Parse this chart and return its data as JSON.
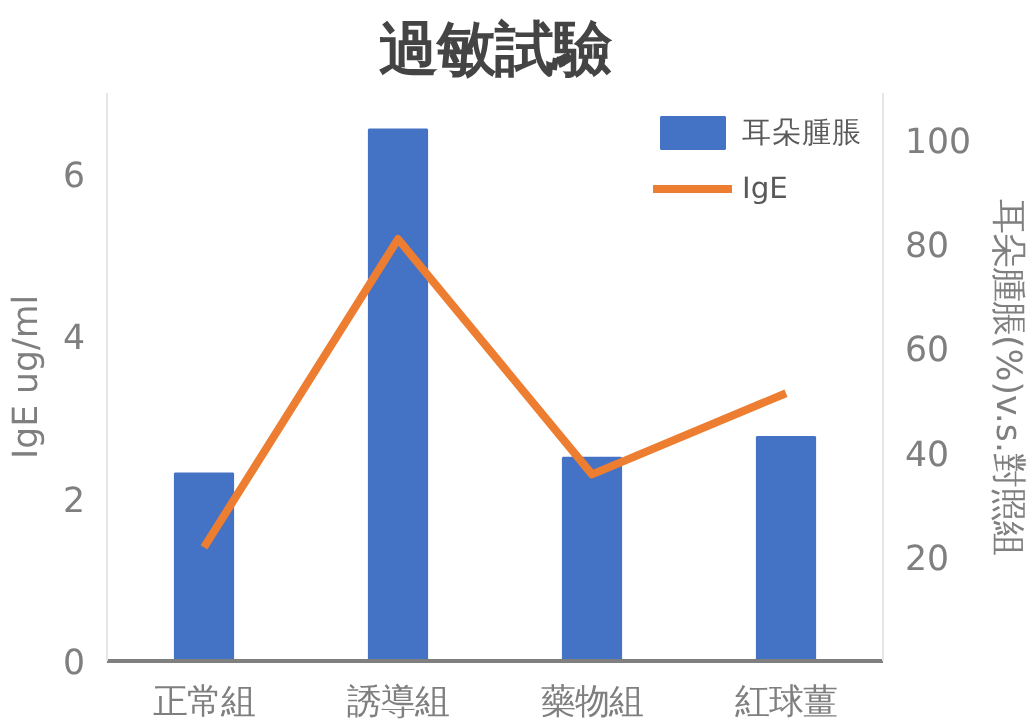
{
  "chart_data": {
    "type": "bar",
    "title": "過敏試驗",
    "categories": [
      "正常組",
      "誘導組",
      "藥物組",
      "紅球薑"
    ],
    "series": [
      {
        "name": "耳朵腫脹",
        "axis": "y2",
        "color": "#4472c4",
        "values": [
          36,
          102,
          39,
          43
        ]
      },
      {
        "name": "IgE",
        "type": "line",
        "color": "#ed7d31",
        "values": [
          1.4,
          5.2,
          2.3,
          3.3
        ]
      }
    ],
    "ylabel": "IgE ug/ml",
    "y2label": "耳朵腫脹(%)v.s.對照組",
    "ylim": [
      0,
      7
    ],
    "yticks": [
      0,
      2,
      4,
      6
    ],
    "y2lim": [
      0,
      109
    ],
    "y2ticks": [
      20,
      40,
      60,
      80,
      100
    ],
    "legend": "top right",
    "marker": "none",
    "line_style": "solid"
  }
}
